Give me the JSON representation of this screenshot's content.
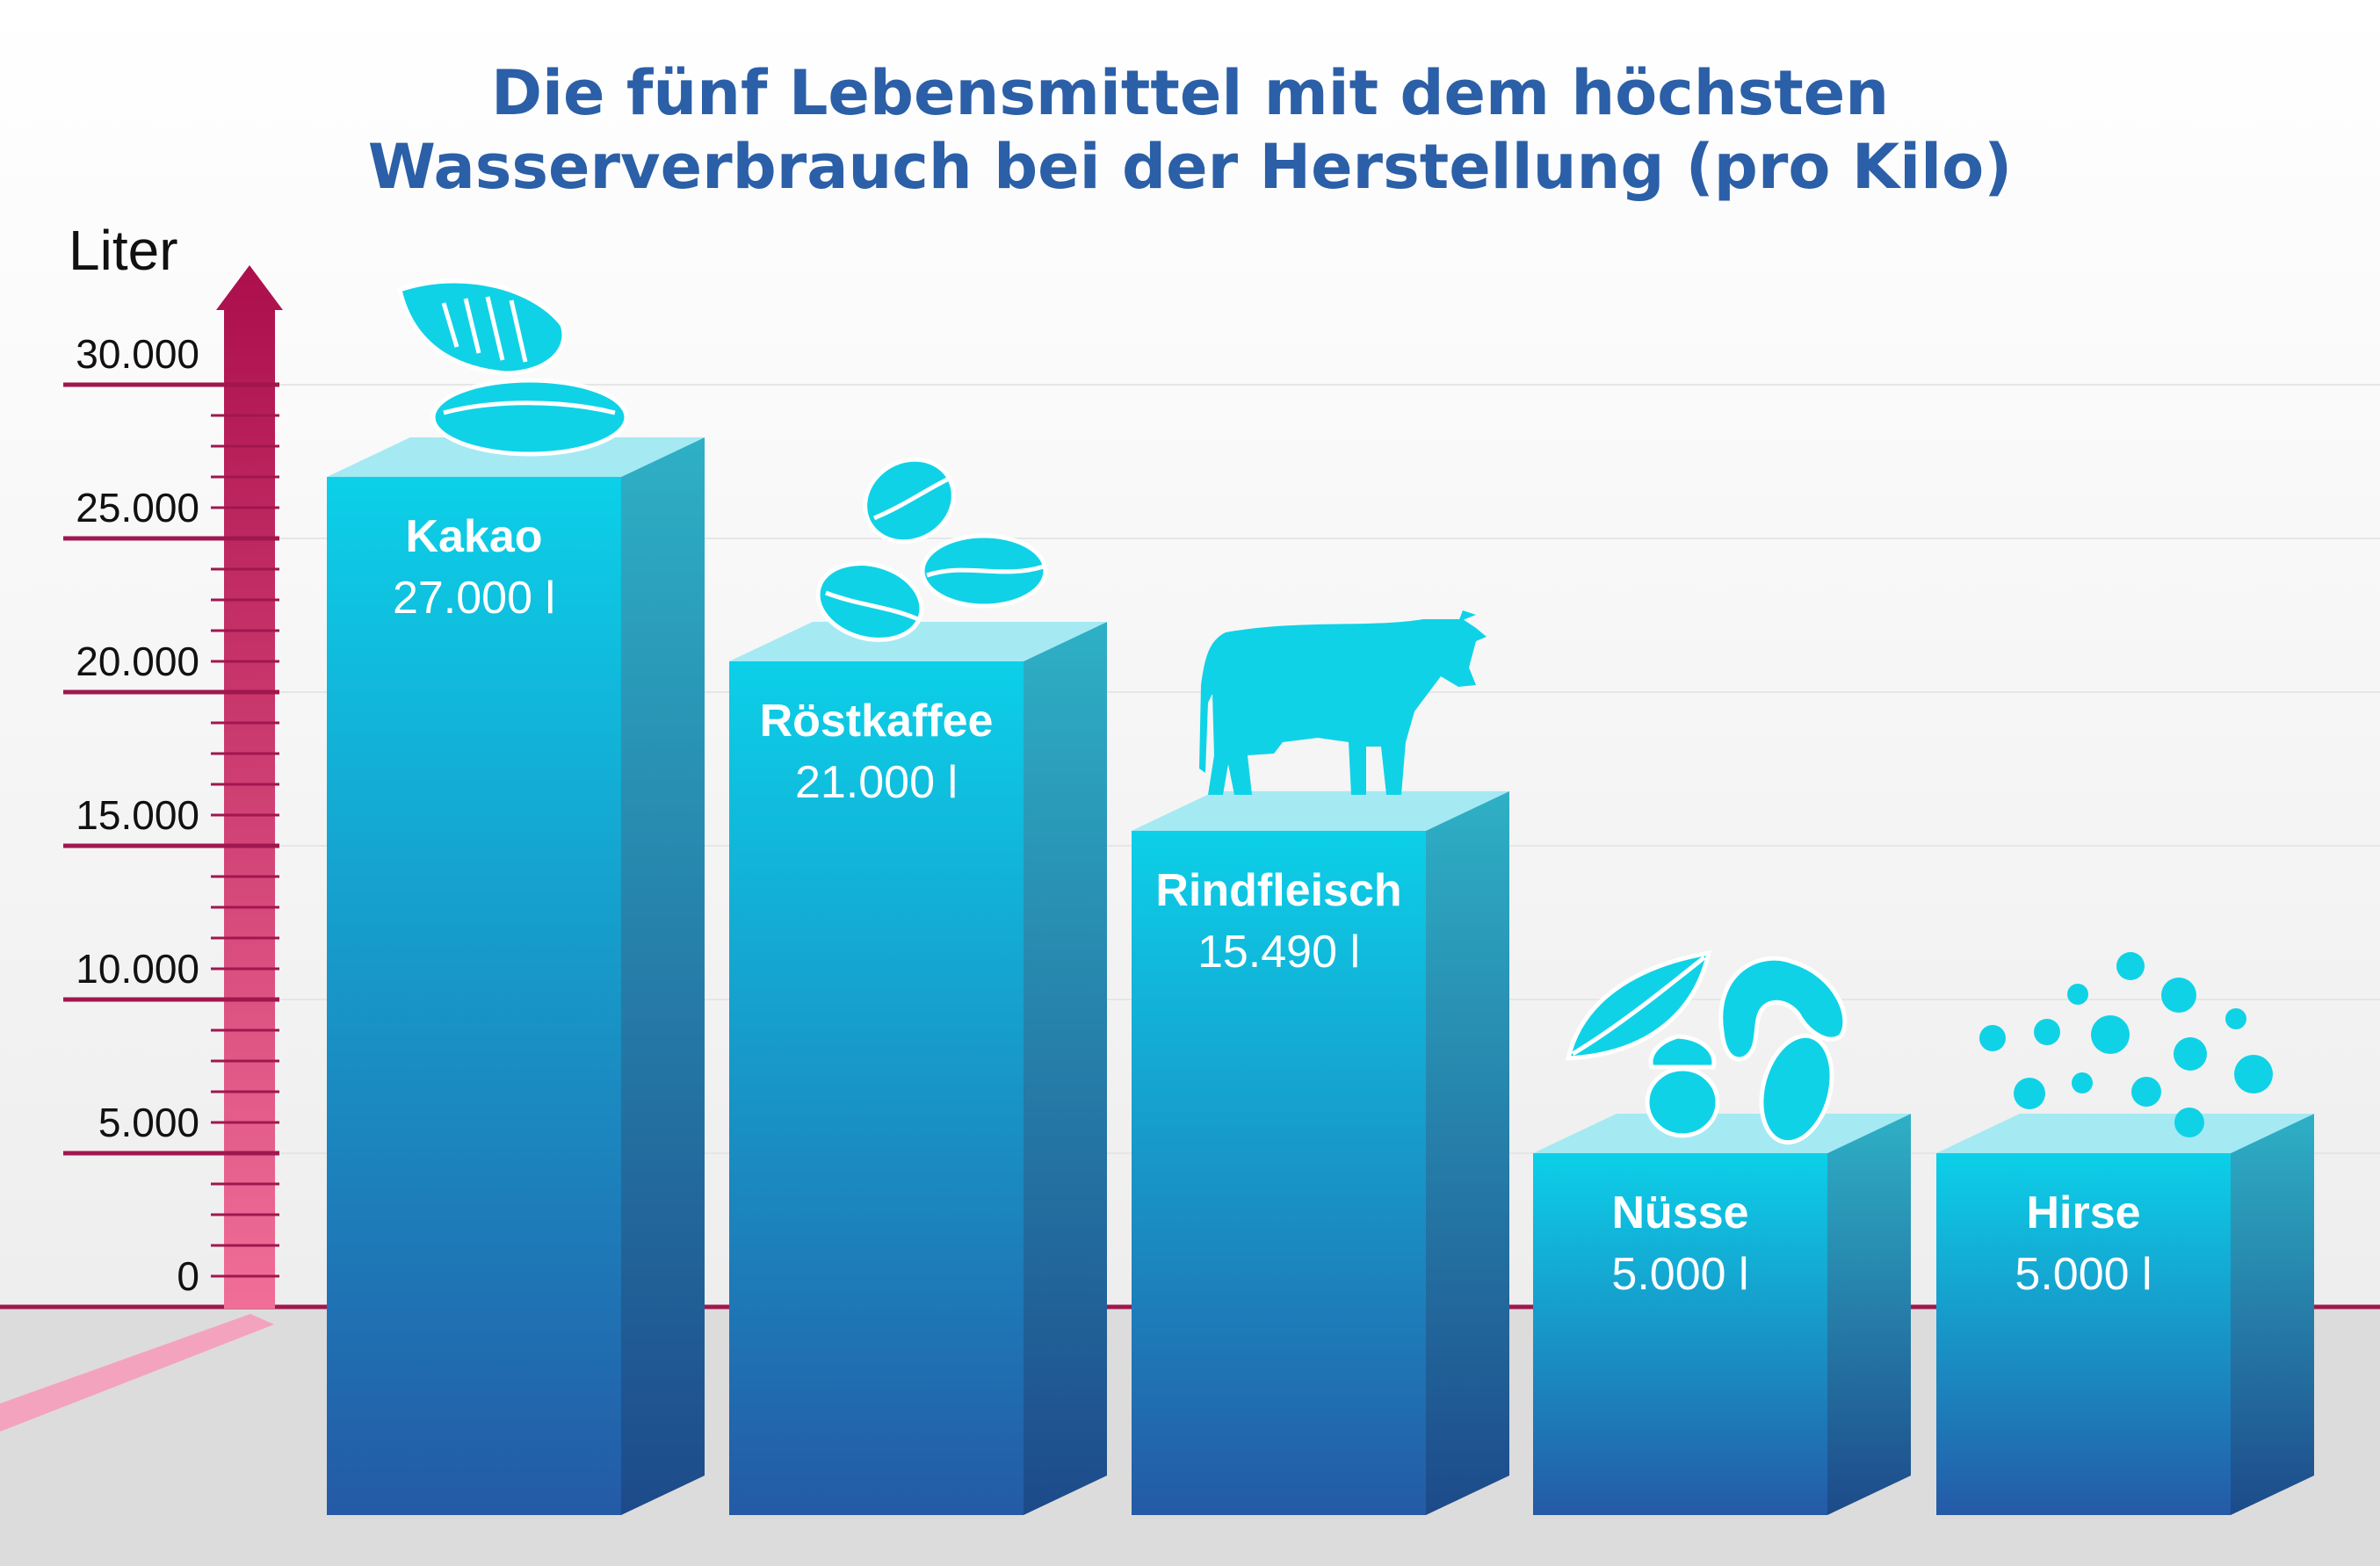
{
  "header": {
    "title_line1": "Die fünf Lebensmittel mit dem höchsten",
    "title_line2": "Wasserverbrauch bei der Herstellung (pro Kilo)"
  },
  "colors": {
    "title": "#2b5fa7",
    "bar_top": "#0cd0e8",
    "bar_bottom": "#245aa6",
    "axis": "#b0124e",
    "icon": "#10d2e6"
  },
  "chart_data": {
    "type": "bar",
    "ylabel": "Liter",
    "ylim": [
      0,
      30000
    ],
    "yticks": [
      {
        "value": 30000,
        "label": "30.000"
      },
      {
        "value": 25000,
        "label": "25.000"
      },
      {
        "value": 20000,
        "label": "20.000"
      },
      {
        "value": 15000,
        "label": "15.000"
      },
      {
        "value": 10000,
        "label": "10.000"
      },
      {
        "value": 5000,
        "label": "5.000"
      },
      {
        "value": 0,
        "label": "0"
      }
    ],
    "categories": [
      "Kakao",
      "Röstkaffee",
      "Rindfleisch",
      "Nüsse",
      "Hirse"
    ],
    "values": [
      27000,
      21000,
      15490,
      5000,
      5000
    ],
    "value_labels": [
      "27.000 l",
      "21.000 l",
      "15.490 l",
      "5.000 l",
      "5.000 l"
    ],
    "icons": [
      "cocoa-icon",
      "coffee-bean-icon",
      "cow-icon",
      "nuts-icon",
      "millet-icon"
    ],
    "grid": true,
    "legend": "none"
  }
}
